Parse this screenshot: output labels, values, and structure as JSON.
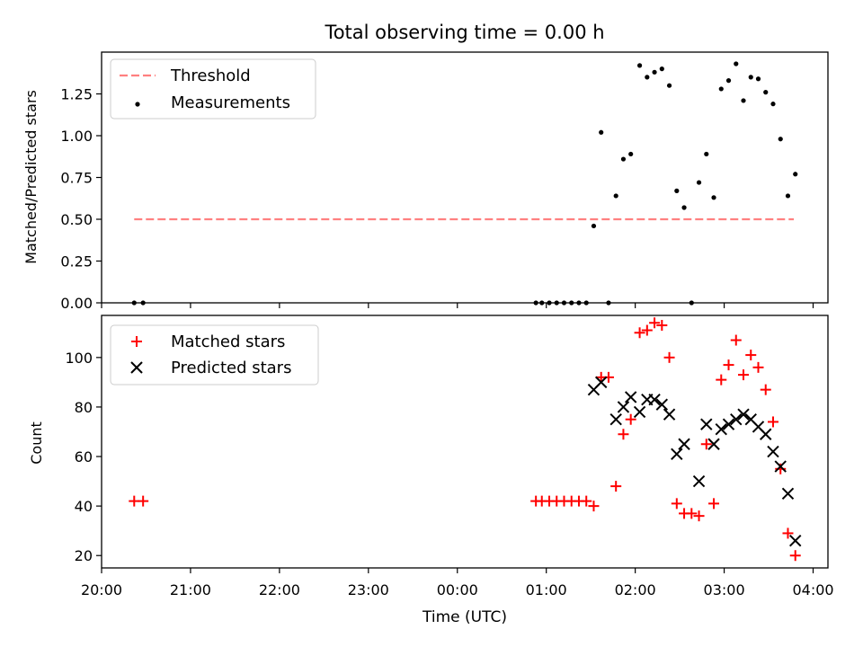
{
  "chart_data": [
    {
      "type": "scatter",
      "title": "Total observing time = 0.00 h",
      "ylabel": "Matched/Predicted stars",
      "xlabel": "",
      "xlim": [
        "20:00",
        "04:10"
      ],
      "ylim": [
        0,
        1.5
      ],
      "yticks": [
        "0.00",
        "0.25",
        "0.50",
        "0.75",
        "1.00",
        "1.25"
      ],
      "grid": false,
      "legend": {
        "position": "top-left",
        "entries": [
          "Threshold",
          "Measurements"
        ]
      },
      "series": [
        {
          "name": "Threshold",
          "kind": "dashed-line",
          "color": "#ff8080",
          "points": [
            [
              "20:22",
              0.5
            ],
            [
              "03:47",
              0.5
            ]
          ]
        },
        {
          "name": "Measurements",
          "kind": "dot",
          "color": "#000000",
          "points": [
            [
              "20:22",
              0.0
            ],
            [
              "20:28",
              0.0
            ],
            [
              "00:53",
              0.0
            ],
            [
              "00:57",
              0.0
            ],
            [
              "01:02",
              0.0
            ],
            [
              "01:07",
              0.0
            ],
            [
              "01:12",
              0.0
            ],
            [
              "01:17",
              0.0
            ],
            [
              "01:22",
              0.0
            ],
            [
              "01:27",
              0.0
            ],
            [
              "01:32",
              0.46
            ],
            [
              "01:37",
              1.02
            ],
            [
              "01:42",
              0.0
            ],
            [
              "01:47",
              0.64
            ],
            [
              "01:52",
              0.86
            ],
            [
              "01:57",
              0.89
            ],
            [
              "02:03",
              1.42
            ],
            [
              "02:08",
              1.35
            ],
            [
              "02:13",
              1.38
            ],
            [
              "02:18",
              1.4
            ],
            [
              "02:23",
              1.3
            ],
            [
              "02:28",
              0.67
            ],
            [
              "02:33",
              0.57
            ],
            [
              "02:38",
              0.0
            ],
            [
              "02:43",
              0.72
            ],
            [
              "02:48",
              0.89
            ],
            [
              "02:53",
              0.63
            ],
            [
              "02:58",
              1.28
            ],
            [
              "03:03",
              1.33
            ],
            [
              "03:08",
              1.43
            ],
            [
              "03:13",
              1.21
            ],
            [
              "03:18",
              1.35
            ],
            [
              "03:23",
              1.34
            ],
            [
              "03:28",
              1.26
            ],
            [
              "03:33",
              1.19
            ],
            [
              "03:38",
              0.98
            ],
            [
              "03:43",
              0.64
            ],
            [
              "03:48",
              0.77
            ]
          ]
        }
      ]
    },
    {
      "type": "scatter",
      "title": "",
      "ylabel": "Count",
      "xlabel": "Time (UTC)",
      "xlim": [
        "20:00",
        "04:10"
      ],
      "ylim": [
        15,
        117
      ],
      "xticks": [
        "20:00",
        "21:00",
        "22:00",
        "23:00",
        "00:00",
        "01:00",
        "02:00",
        "03:00",
        "04:00"
      ],
      "yticks": [
        "20",
        "40",
        "60",
        "80",
        "100"
      ],
      "grid": false,
      "legend": {
        "position": "top-left",
        "entries": [
          "Matched stars",
          "Predicted stars"
        ]
      },
      "series": [
        {
          "name": "Matched stars",
          "kind": "plus",
          "color": "#ff0000",
          "points": [
            [
              "20:22",
              42
            ],
            [
              "20:28",
              42
            ],
            [
              "00:53",
              42
            ],
            [
              "00:57",
              42
            ],
            [
              "01:02",
              42
            ],
            [
              "01:07",
              42
            ],
            [
              "01:12",
              42
            ],
            [
              "01:17",
              42
            ],
            [
              "01:22",
              42
            ],
            [
              "01:27",
              42
            ],
            [
              "01:32",
              40
            ],
            [
              "01:37",
              92
            ],
            [
              "01:42",
              92
            ],
            [
              "01:47",
              48
            ],
            [
              "01:52",
              69
            ],
            [
              "01:57",
              75
            ],
            [
              "02:03",
              110
            ],
            [
              "02:08",
              111
            ],
            [
              "02:13",
              114
            ],
            [
              "02:18",
              113
            ],
            [
              "02:23",
              100
            ],
            [
              "02:28",
              41
            ],
            [
              "02:33",
              37
            ],
            [
              "02:38",
              37
            ],
            [
              "02:43",
              36
            ],
            [
              "02:48",
              65
            ],
            [
              "02:53",
              41
            ],
            [
              "02:58",
              91
            ],
            [
              "03:03",
              97
            ],
            [
              "03:08",
              107
            ],
            [
              "03:13",
              93
            ],
            [
              "03:18",
              101
            ],
            [
              "03:23",
              96
            ],
            [
              "03:28",
              87
            ],
            [
              "03:33",
              74
            ],
            [
              "03:38",
              55
            ],
            [
              "03:43",
              29
            ],
            [
              "03:48",
              20
            ]
          ]
        },
        {
          "name": "Predicted stars",
          "kind": "x",
          "color": "#000000",
          "points": [
            [
              "01:32",
              87
            ],
            [
              "01:37",
              90
            ],
            [
              "01:47",
              75
            ],
            [
              "01:52",
              80
            ],
            [
              "01:57",
              84
            ],
            [
              "02:03",
              78
            ],
            [
              "02:08",
              83
            ],
            [
              "02:13",
              83
            ],
            [
              "02:18",
              81
            ],
            [
              "02:23",
              77
            ],
            [
              "02:28",
              61
            ],
            [
              "02:33",
              65
            ],
            [
              "02:43",
              50
            ],
            [
              "02:48",
              73
            ],
            [
              "02:53",
              65
            ],
            [
              "02:58",
              71
            ],
            [
              "03:03",
              73
            ],
            [
              "03:08",
              75
            ],
            [
              "03:13",
              77
            ],
            [
              "03:18",
              75
            ],
            [
              "03:23",
              72
            ],
            [
              "03:28",
              69
            ],
            [
              "03:33",
              62
            ],
            [
              "03:38",
              56
            ],
            [
              "03:43",
              45
            ],
            [
              "03:48",
              26
            ]
          ]
        }
      ]
    }
  ]
}
